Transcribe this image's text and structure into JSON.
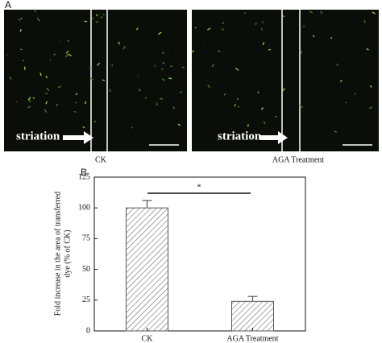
{
  "panel_a": {
    "label": "A",
    "images": [
      {
        "annotation": "striation",
        "caption": "CK"
      },
      {
        "annotation": "striation",
        "caption": "AGA Treatment"
      }
    ]
  },
  "chart_data": {
    "type": "bar",
    "panel_label": "B",
    "y_label": [
      "Fold increase in the area of transferred",
      "dye (% of CK)"
    ],
    "categories": [
      "CK",
      "AGA Treatment"
    ],
    "values": [
      100,
      24
    ],
    "errors": [
      6,
      4
    ],
    "color": "#555555",
    "hatch": true,
    "ylim": [
      0,
      125
    ],
    "yticks": [
      0,
      25,
      50,
      75,
      100,
      125
    ],
    "significance": "*"
  }
}
